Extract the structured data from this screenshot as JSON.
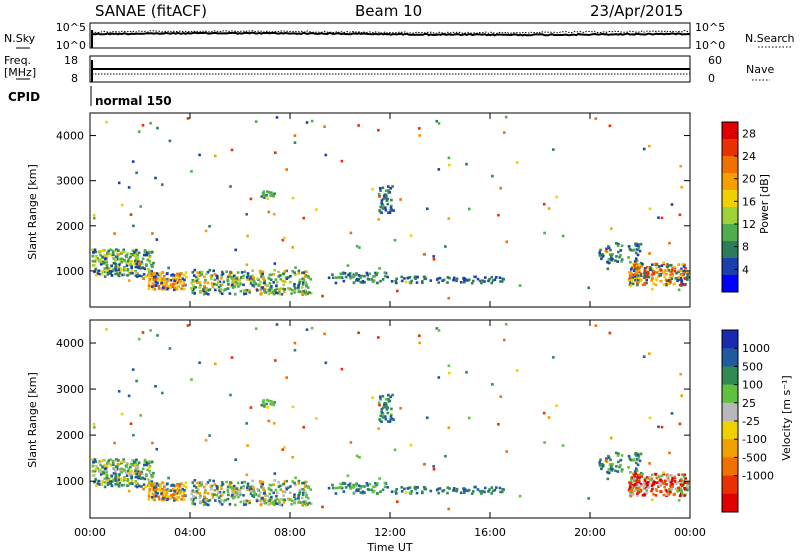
{
  "header": {
    "station": "SANAE (fitACF)",
    "beam": "Beam 10",
    "date": "23/Apr/2015"
  },
  "top_panels": {
    "nsky_label": "N.Sky",
    "nsky_ticks": [
      "10^5",
      "10^0"
    ],
    "nsearch_label": "N.Search",
    "nsearch_ticks": [
      "10^5",
      "10^0"
    ],
    "freq_label": "Freq.",
    "freq_unit": "[MHz]",
    "freq_ticks": [
      "18",
      "8"
    ],
    "nave_label": "Nave",
    "nave_ticks": [
      "60",
      "0"
    ],
    "cpid_label": "CPID",
    "cpid_value": "normal 150"
  },
  "colors": {
    "power": [
      "#0000ff",
      "#1c3fb0",
      "#2e7d5a",
      "#4fae4b",
      "#9fd23a",
      "#f0d000",
      "#f5a000",
      "#f07000",
      "#e83000",
      "#e00000"
    ],
    "velocity": [
      "#1a2ab0",
      "#1e5aa0",
      "#2e8a50",
      "#60c040",
      "#b8b8b8",
      "#f0d000",
      "#f0a000",
      "#f07000",
      "#e83000",
      "#e00000"
    ]
  },
  "chart_data": [
    {
      "type": "heatmap",
      "name": "power",
      "ylabel": "Slant Range [km]",
      "x_range": [
        0,
        24
      ],
      "ylim": [
        200,
        4500
      ],
      "yticks": [
        "1000",
        "2000",
        "3000",
        "4000"
      ],
      "colorbar_label": "Power [dB]",
      "colorbar_ticks": [
        "4",
        "8",
        "12",
        "16",
        "20",
        "24",
        "28"
      ],
      "colorbar_range": [
        0,
        30
      ]
    },
    {
      "type": "heatmap",
      "name": "velocity",
      "ylabel": "Slant Range [km]",
      "x_range": [
        0,
        24
      ],
      "ylim": [
        200,
        4500
      ],
      "yticks": [
        "1000",
        "2000",
        "3000",
        "4000"
      ],
      "colorbar_label": "Velocity [m s⁻¹]",
      "colorbar_ticks": [
        "1000",
        "500",
        "100",
        "25",
        "-25",
        "-100",
        "-500",
        "-1000"
      ]
    }
  ],
  "xaxis": {
    "label": "Time UT",
    "ticks": [
      "00:00",
      "04:00",
      "08:00",
      "12:00",
      "16:00",
      "20:00",
      "00:00"
    ]
  }
}
